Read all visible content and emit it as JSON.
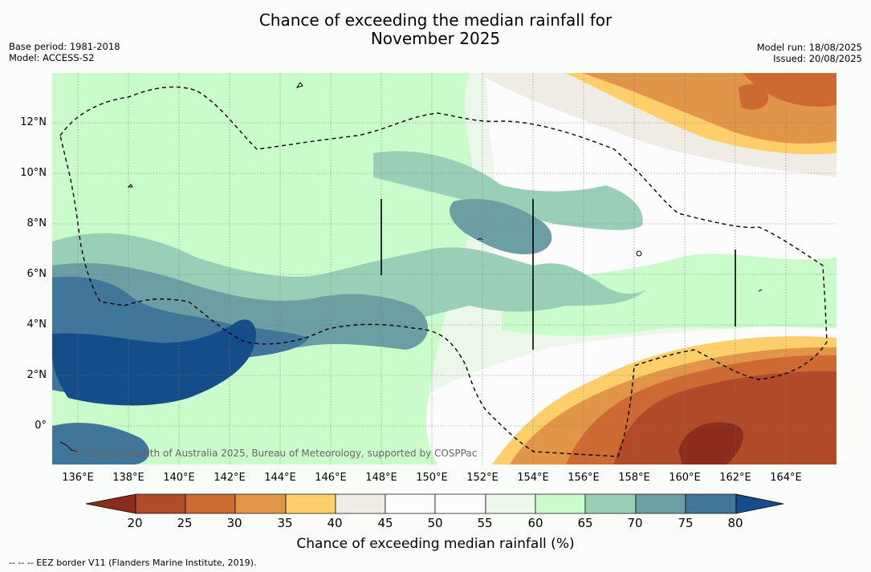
{
  "title_line1": "Chance of exceeding the median rainfall for",
  "title_line2": "November 2025",
  "base_period": "Base period: 1981-2018",
  "model": "Model: ACCESS-S2",
  "model_run": "Model run: 18/08/2025",
  "issued": "Issued: 20/08/2025",
  "copyright": "© Commonwealth of Australia 2025, Bureau of Meteorology, supported by COSPPac",
  "footnote": "--  --  -- EEZ border V11 (Flanders Marine Institute, 2019).",
  "map_data": {
    "lon_ticks": [
      "136°E",
      "138°E",
      "140°E",
      "142°E",
      "144°E",
      "146°E",
      "148°E",
      "150°E",
      "152°E",
      "154°E",
      "156°E",
      "158°E",
      "160°E",
      "162°E",
      "164°E"
    ],
    "lat_ticks": [
      "12°N",
      "10°N",
      "8°N",
      "6°N",
      "4°N",
      "2°N",
      "0°"
    ],
    "lon_range": [
      135,
      166
    ],
    "lat_range": [
      -1.5,
      14
    ]
  },
  "colorbar": {
    "label": "Chance of exceeding median rainfall (%)",
    "ticks": [
      "20",
      "25",
      "30",
      "35",
      "40",
      "45",
      "50",
      "55",
      "60",
      "65",
      "70",
      "75",
      "80"
    ],
    "colors": [
      "#8c2c1c",
      "#b04a28",
      "#cd6a33",
      "#e19548",
      "#fccf6a",
      "#efece6",
      "#fcfcfc",
      "#fbfcfb",
      "#ecf6eb",
      "#cafccb",
      "#9acfb7",
      "#6b9fa3",
      "#40769a",
      "#144d8a"
    ]
  }
}
